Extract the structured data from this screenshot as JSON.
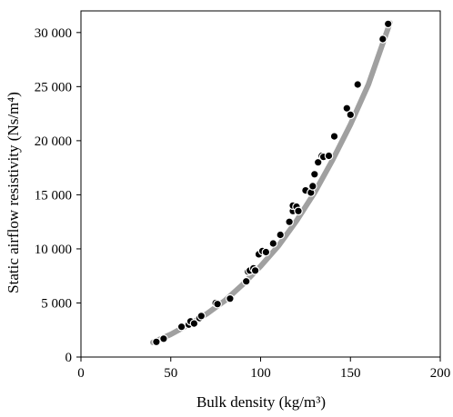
{
  "chart_data": {
    "type": "scatter",
    "title": "",
    "xlabel": "Bulk density (kg/m³)",
    "ylabel": "Static airflow resistivity (Ns/m⁴)",
    "xlim": [
      0,
      200
    ],
    "ylim": [
      0,
      32000
    ],
    "xticks": [
      0,
      50,
      100,
      150,
      200
    ],
    "xtick_labels": [
      "0",
      "50",
      "100",
      "150",
      "200"
    ],
    "yticks": [
      0,
      5000,
      10000,
      15000,
      20000,
      25000,
      30000
    ],
    "ytick_labels": [
      "0",
      "5 000",
      "10 000",
      "15 000",
      "20 000",
      "25 000",
      "30 000"
    ],
    "grid": false,
    "legend": "none",
    "colors": {
      "points": "#000000",
      "point_edge": "#ffffff",
      "fit": "#a0a0a0"
    },
    "series": [
      {
        "kind": "points",
        "x": [
          42,
          46,
          56,
          60,
          61,
          63,
          66,
          67,
          75,
          76,
          83,
          92,
          93,
          94,
          96,
          97,
          99,
          101,
          103,
          107,
          111,
          116,
          118,
          118,
          120,
          121,
          125,
          128,
          129,
          130,
          132,
          134,
          135,
          138,
          141,
          148,
          150,
          154,
          168,
          171
        ],
        "y": [
          1400,
          1700,
          2800,
          3000,
          3300,
          3100,
          3600,
          3800,
          5000,
          4900,
          5400,
          7000,
          7900,
          8000,
          8200,
          8000,
          9500,
          9800,
          9700,
          10500,
          11300,
          12500,
          13500,
          14000,
          13900,
          13500,
          15400,
          15200,
          15800,
          16900,
          18000,
          18600,
          18500,
          18600,
          20400,
          23000,
          22400,
          25200,
          29400,
          30800
        ]
      },
      {
        "kind": "fit",
        "x": [
          40,
          50,
          60,
          70,
          80,
          90,
          100,
          110,
          120,
          130,
          140,
          150,
          160,
          172
        ],
        "y": [
          1350,
          2100,
          3000,
          4000,
          5200,
          6700,
          8400,
          10300,
          12600,
          15200,
          18200,
          21500,
          25200,
          30900
        ]
      }
    ]
  }
}
